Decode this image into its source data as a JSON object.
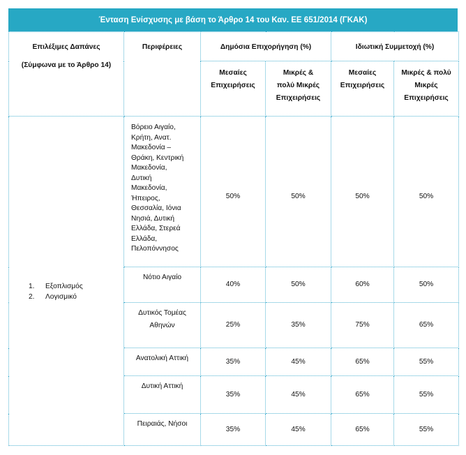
{
  "title": "Ένταση Ενίσχυσης με βάση το Άρθρο 14 του Καν. ΕΕ 651/2014 (ΓΚΑΚ)",
  "headers": {
    "expenses": "Επιλέξιμες Δαπάνες",
    "expenses_note": "(Σύμφωνα με το Άρθρο 14)",
    "regions": "Περιφέρειες",
    "public": "Δημόσια Επιχορήγηση (%)",
    "private": "Ιδιωτική Συμμετοχή (%)",
    "public_medium_1": "Μεσαίες",
    "public_medium_2": "Επιχειρήσεις",
    "public_small_1": "Μικρές &",
    "public_small_2": "πολύ Μικρές",
    "public_small_3": "Επιχειρήσεις",
    "private_medium_1": "Μεσαίες",
    "private_medium_2": "Επιχειρήσεις",
    "private_small_1": "Μικρές & πολύ",
    "private_small_2": "Μικρές",
    "private_small_3": "Επιχειρήσεις"
  },
  "categories": [
    {
      "num": "1.",
      "label": "Εξοπλισμός"
    },
    {
      "num": "2.",
      "label": "Λογισμικό"
    }
  ],
  "rows": [
    {
      "region_lines": [
        "Βόρειο Αιγαίο,",
        "Κρήτη, Ανατ.",
        "Μακεδονία –",
        "Θράκη, Κεντρική",
        "Μακεδονία,",
        "Δυτική",
        "Μακεδονία,",
        "Ήπειρος,",
        "Θεσσαλία, Ιόνια",
        "Νησιά, Δυτική",
        "Ελλάδα, Στερεά",
        "Ελλάδα,",
        "Πελοπόννησος"
      ],
      "public_medium": "50%",
      "public_small": "50%",
      "private_medium": "50%",
      "private_small": "50%"
    },
    {
      "region": "Νότιο Αιγαίο",
      "public_medium": "40%",
      "public_small": "50%",
      "private_medium": "60%",
      "private_small": "50%"
    },
    {
      "region_lines2": [
        "Δυτικός Τομέας",
        "Αθηνών"
      ],
      "public_medium": "25%",
      "public_small": "35%",
      "private_medium": "75%",
      "private_small": "65%"
    },
    {
      "region": "Ανατολική Αττική",
      "public_medium": "35%",
      "public_small": "45%",
      "private_medium": "65%",
      "private_small": "55%"
    },
    {
      "region": "Δυτική Αττική",
      "public_medium": "35%",
      "public_small": "45%",
      "private_medium": "65%",
      "private_small": "55%"
    },
    {
      "region": "Πειραιάς, Νήσοι",
      "public_medium": "35%",
      "public_small": "45%",
      "private_medium": "65%",
      "private_small": "55%"
    }
  ]
}
